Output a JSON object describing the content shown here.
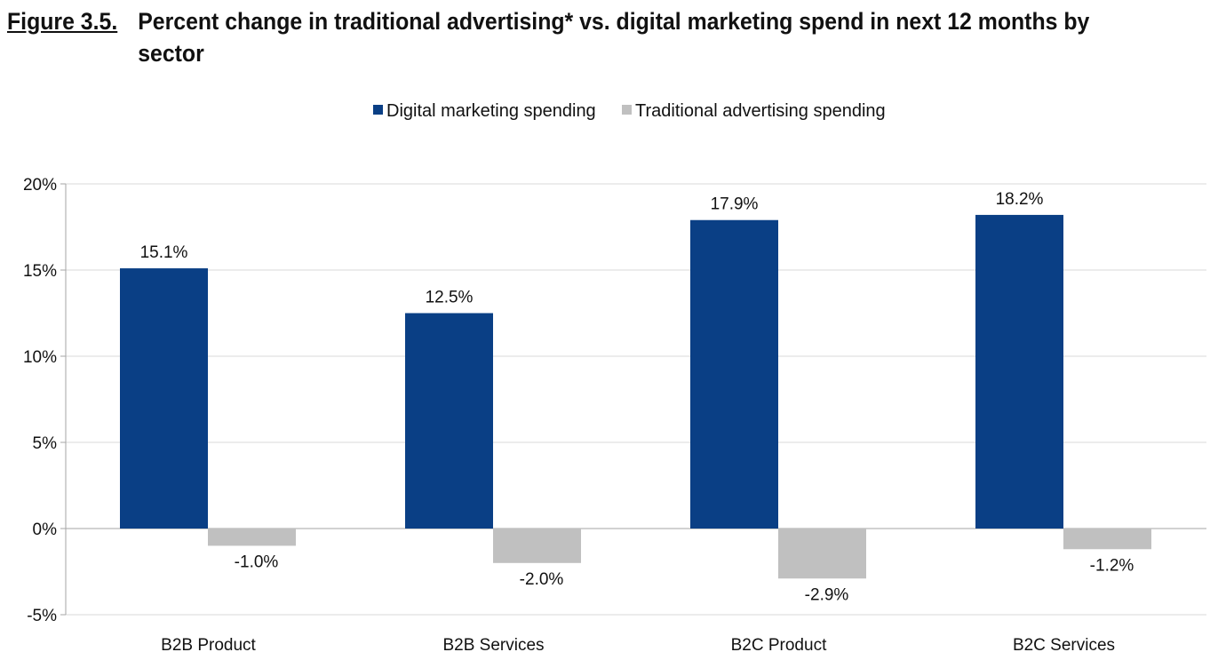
{
  "figure": {
    "label": "Figure 3.5.",
    "title": "Percent change in traditional advertising* vs. digital marketing spend in next 12 months by sector"
  },
  "chart_data": {
    "type": "bar",
    "title": "Percent change in traditional advertising* vs. digital marketing spend in next 12 months by sector",
    "categories": [
      "B2B Product",
      "B2B Services",
      "B2C Product",
      "B2C Services"
    ],
    "series": [
      {
        "name": "Digital marketing spending",
        "color": "#0a3f85",
        "values": [
          15.1,
          12.5,
          17.9,
          18.2
        ],
        "labels": [
          "15.1%",
          "12.5%",
          "17.9%",
          "18.2%"
        ]
      },
      {
        "name": "Traditional advertising spending",
        "color": "#c0c0c0",
        "values": [
          -1.0,
          -2.0,
          -2.9,
          -1.2
        ],
        "labels": [
          "-1.0%",
          "-2.0%",
          "-2.9%",
          "-1.2%"
        ]
      }
    ],
    "ylim": [
      -5,
      20
    ],
    "yticks": [
      20,
      15,
      10,
      5,
      0,
      -5
    ],
    "ytick_labels": [
      "20%",
      "15%",
      "10%",
      "5%",
      "0%",
      "-5%"
    ],
    "grid": true,
    "legend_position": "top-center"
  }
}
